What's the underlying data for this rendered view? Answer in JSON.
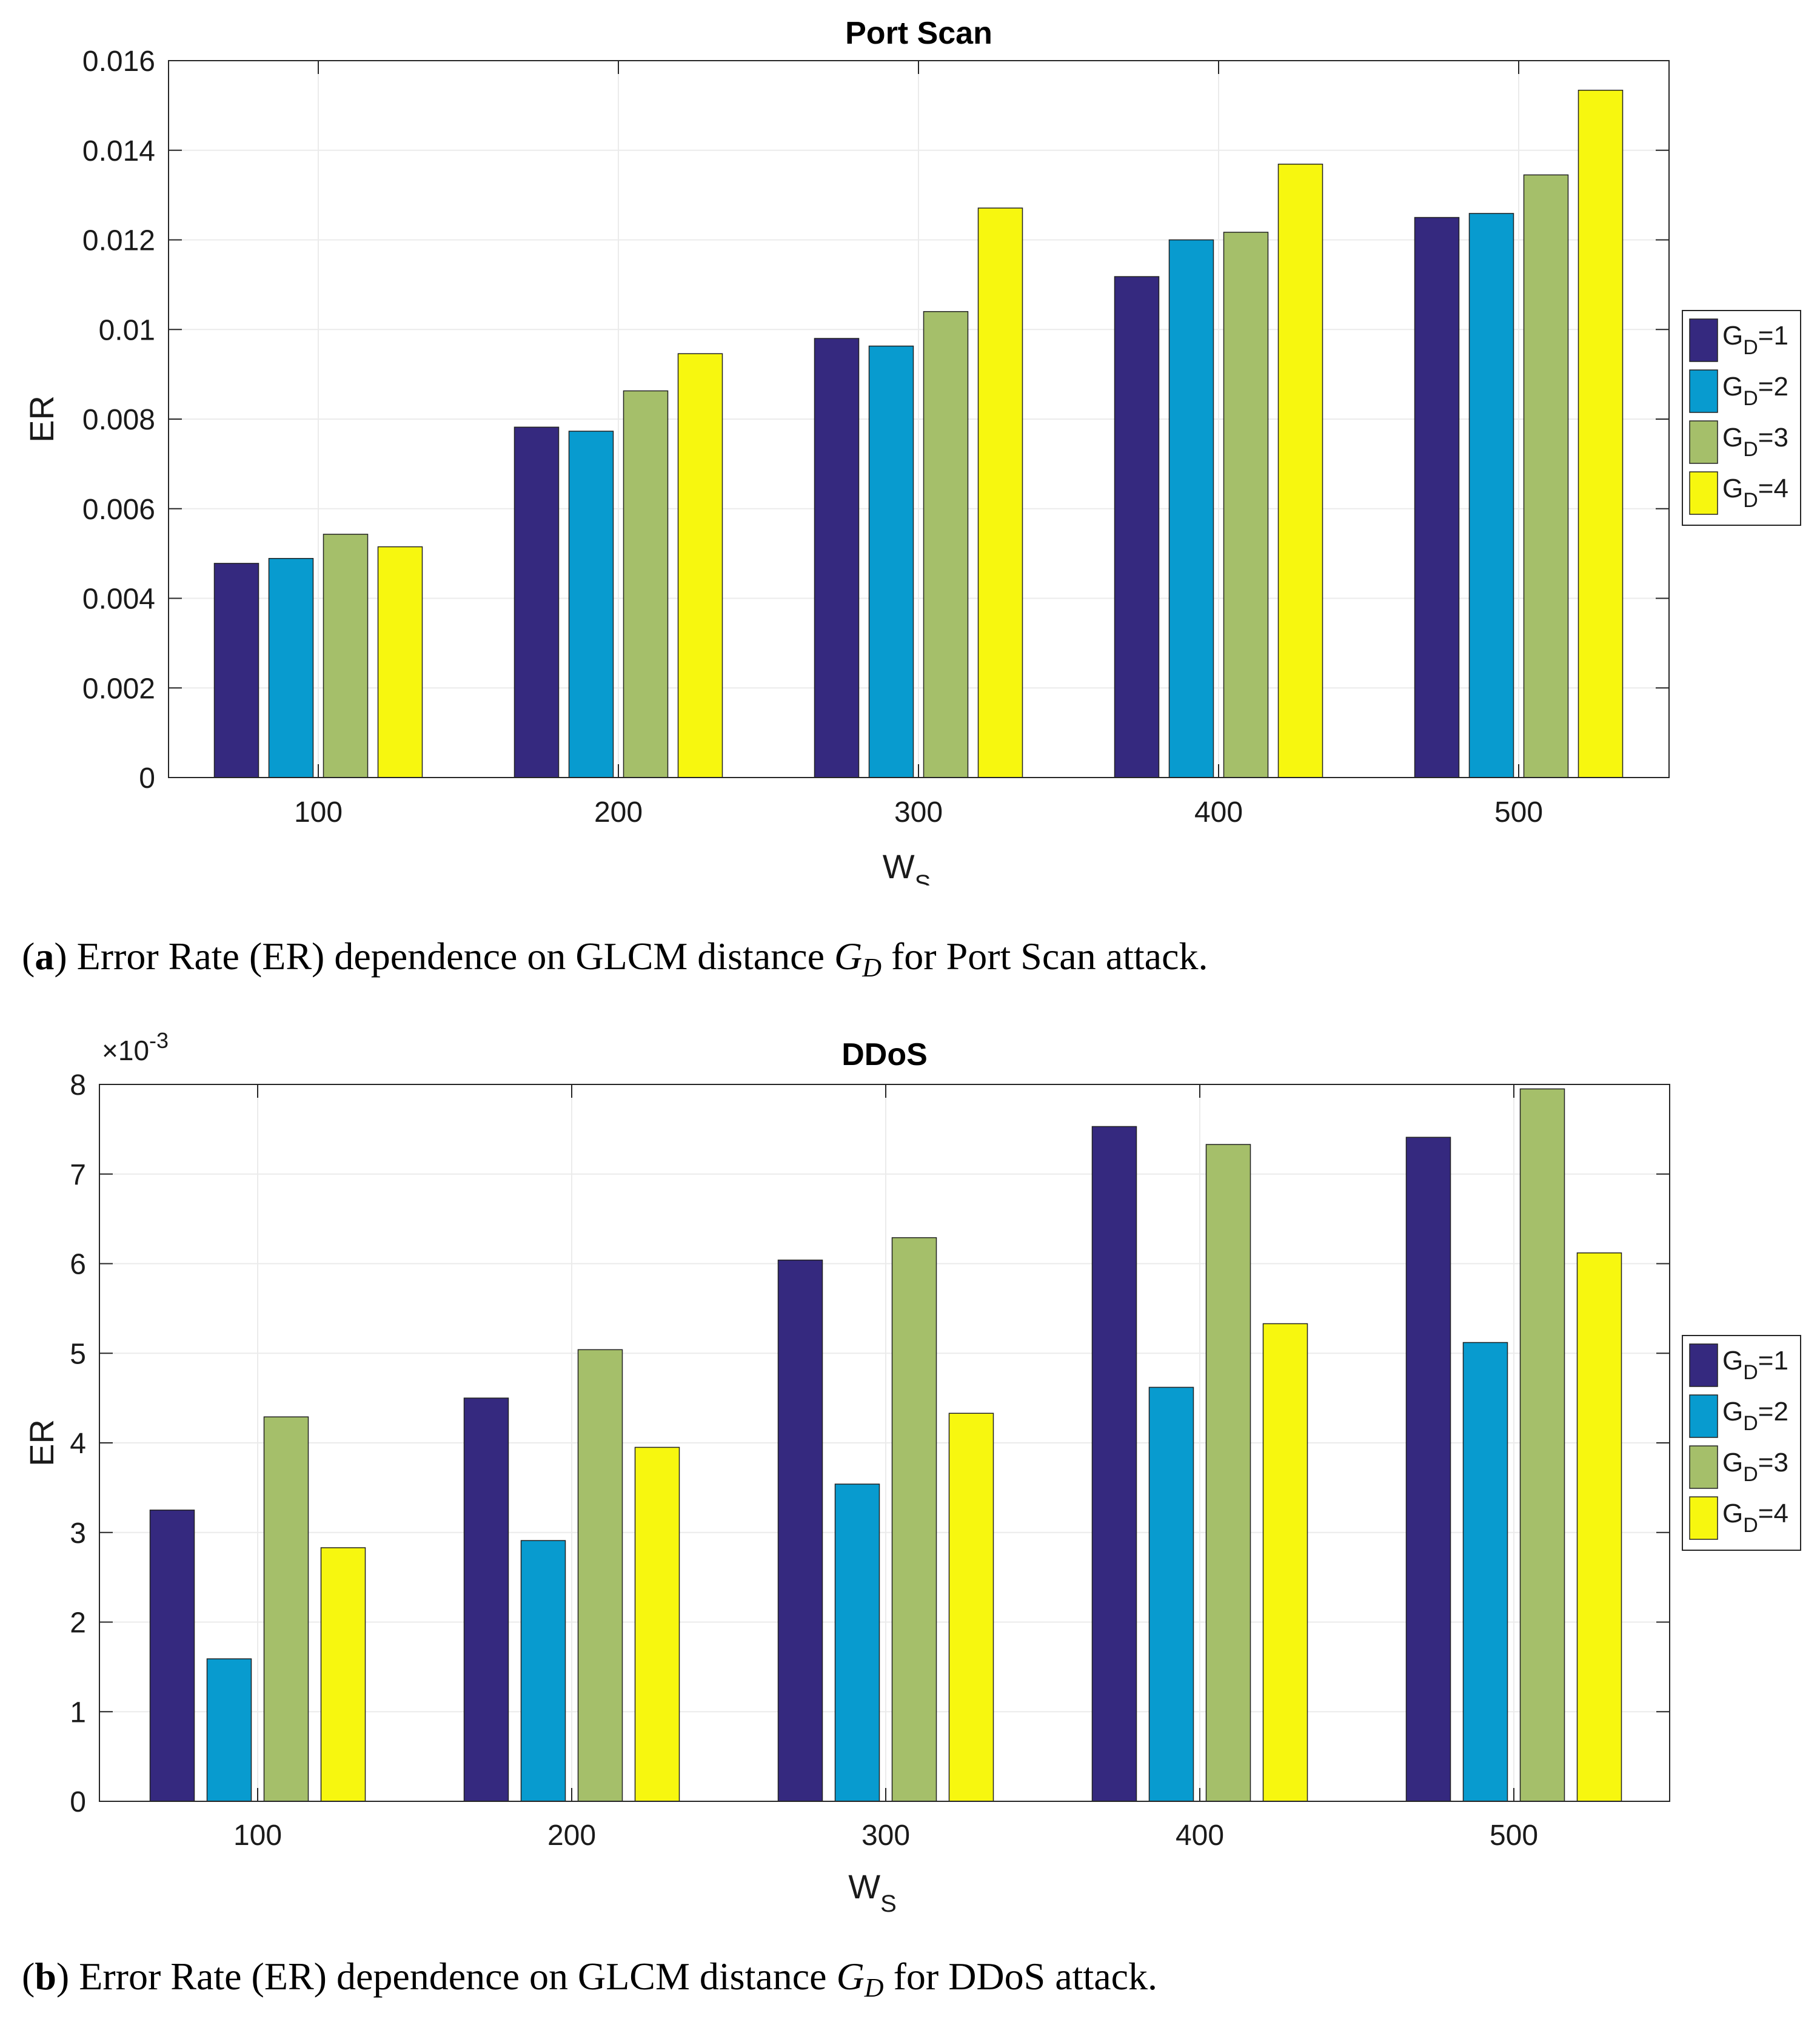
{
  "colors": {
    "G_D=1": "#35297f",
    "G_D=2": "#089bcf",
    "G_D=3": "#a5bf6a",
    "G_D=4": "#f7f70f"
  },
  "chart_data": [
    {
      "type": "bar",
      "title": "Port Scan",
      "xlabel": "W",
      "xlabel_sub": "S",
      "ylabel": "ER",
      "categories": [
        "100",
        "200",
        "300",
        "400",
        "500"
      ],
      "ylim": [
        0,
        0.016
      ],
      "yticks": [
        "0",
        "0.002",
        "0.004",
        "0.006",
        "0.008",
        "0.01",
        "0.012",
        "0.014",
        "0.016"
      ],
      "grid": true,
      "legend_position": "right",
      "series": [
        {
          "name": "G_D=1",
          "label_main": "G",
          "label_sub": "D",
          "label_tail": "=1",
          "values": [
            0.00478,
            0.00782,
            0.0098,
            0.01118,
            0.0125
          ]
        },
        {
          "name": "G_D=2",
          "label_main": "G",
          "label_sub": "D",
          "label_tail": "=2",
          "values": [
            0.00489,
            0.00773,
            0.00963,
            0.012,
            0.01259
          ]
        },
        {
          "name": "G_D=3",
          "label_main": "G",
          "label_sub": "D",
          "label_tail": "=3",
          "values": [
            0.00543,
            0.00863,
            0.0104,
            0.01217,
            0.01345
          ]
        },
        {
          "name": "G_D=4",
          "label_main": "G",
          "label_sub": "D",
          "label_tail": "=4",
          "values": [
            0.00515,
            0.00946,
            0.01271,
            0.01369,
            0.01534
          ]
        }
      ]
    },
    {
      "type": "bar",
      "title": "DDoS",
      "xlabel": "W",
      "xlabel_sub": "S",
      "ylabel": "ER",
      "exponent_base": "×10",
      "exponent_power": "-3",
      "categories": [
        "100",
        "200",
        "300",
        "400",
        "500"
      ],
      "ylim": [
        0,
        8
      ],
      "yticks": [
        "0",
        "1",
        "2",
        "3",
        "4",
        "5",
        "6",
        "7",
        "8"
      ],
      "grid": true,
      "legend_position": "right",
      "series": [
        {
          "name": "G_D=1",
          "label_main": "G",
          "label_sub": "D",
          "label_tail": "=1",
          "values": [
            3.25,
            4.5,
            6.04,
            7.53,
            7.41
          ]
        },
        {
          "name": "G_D=2",
          "label_main": "G",
          "label_sub": "D",
          "label_tail": "=2",
          "values": [
            1.59,
            2.91,
            3.54,
            4.62,
            5.12
          ]
        },
        {
          "name": "G_D=3",
          "label_main": "G",
          "label_sub": "D",
          "label_tail": "=3",
          "values": [
            4.29,
            5.04,
            6.29,
            7.33,
            7.95
          ]
        },
        {
          "name": "G_D=4",
          "label_main": "G",
          "label_sub": "D",
          "label_tail": "=4",
          "values": [
            2.83,
            3.95,
            4.33,
            5.33,
            6.12
          ]
        }
      ]
    }
  ],
  "captions": {
    "a": {
      "tag": "a",
      "text_before": " Error Rate (ER) dependence on GLCM distance ",
      "math_main": "G",
      "math_sub": "D",
      "text_after": " for Port Scan attack."
    },
    "b": {
      "tag": "b",
      "text_before": " Error Rate (ER) dependence on GLCM distance ",
      "math_main": "G",
      "math_sub": "D",
      "text_after": " for DDoS attack."
    }
  }
}
